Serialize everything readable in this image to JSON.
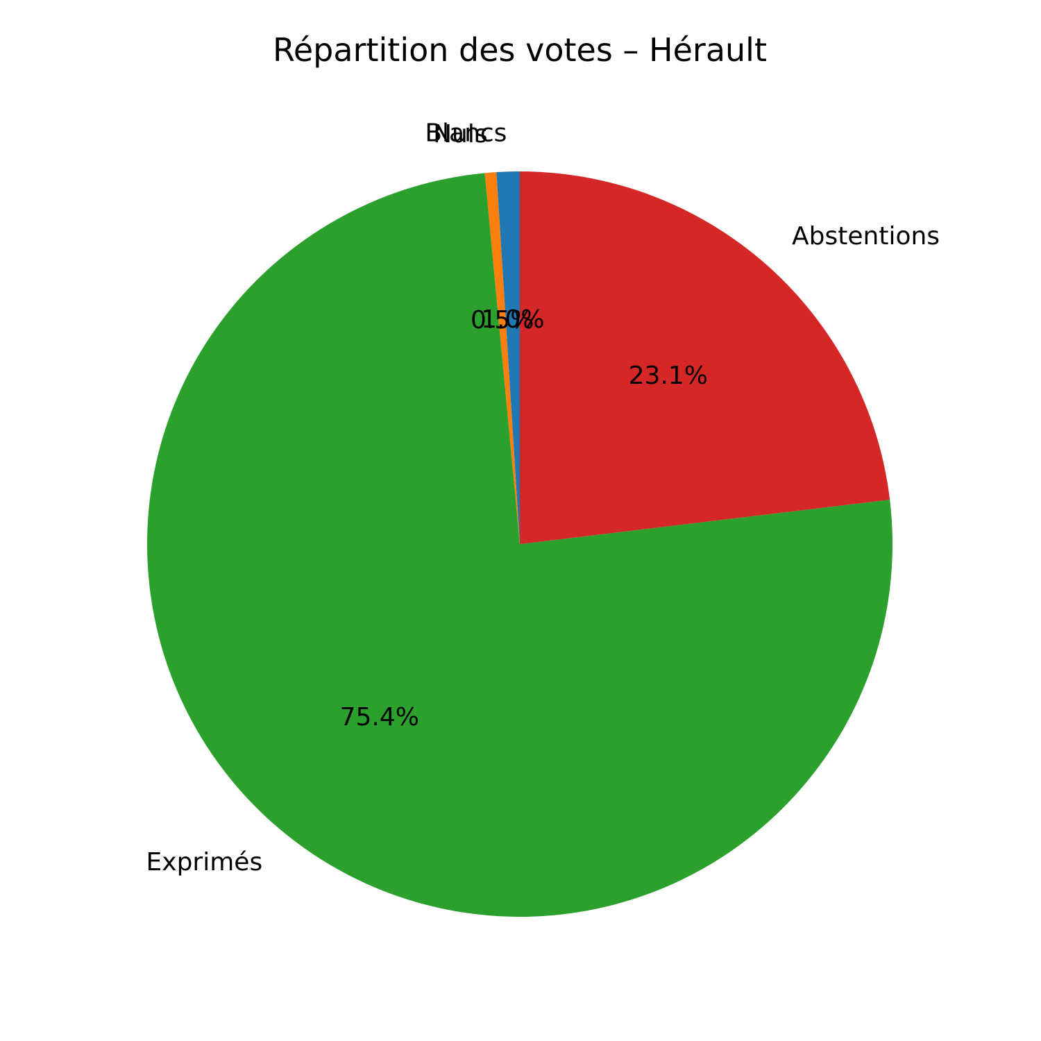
{
  "chart_data": {
    "type": "pie",
    "title": "Répartition des votes – Hérault",
    "slices": [
      {
        "label": "Blancs",
        "value": 1.0,
        "pct_label": "1.0%",
        "color": "#1f77b4"
      },
      {
        "label": "Nuls",
        "value": 0.5,
        "pct_label": "0.5%",
        "color": "#ff7f0e"
      },
      {
        "label": "Exprimés",
        "value": 75.4,
        "pct_label": "75.4%",
        "color": "#2ca02c"
      },
      {
        "label": "Abstentions",
        "value": 23.1,
        "pct_label": "23.1%",
        "color": "#d62728"
      }
    ],
    "start_angle_deg": 90,
    "direction": "counterclockwise"
  }
}
